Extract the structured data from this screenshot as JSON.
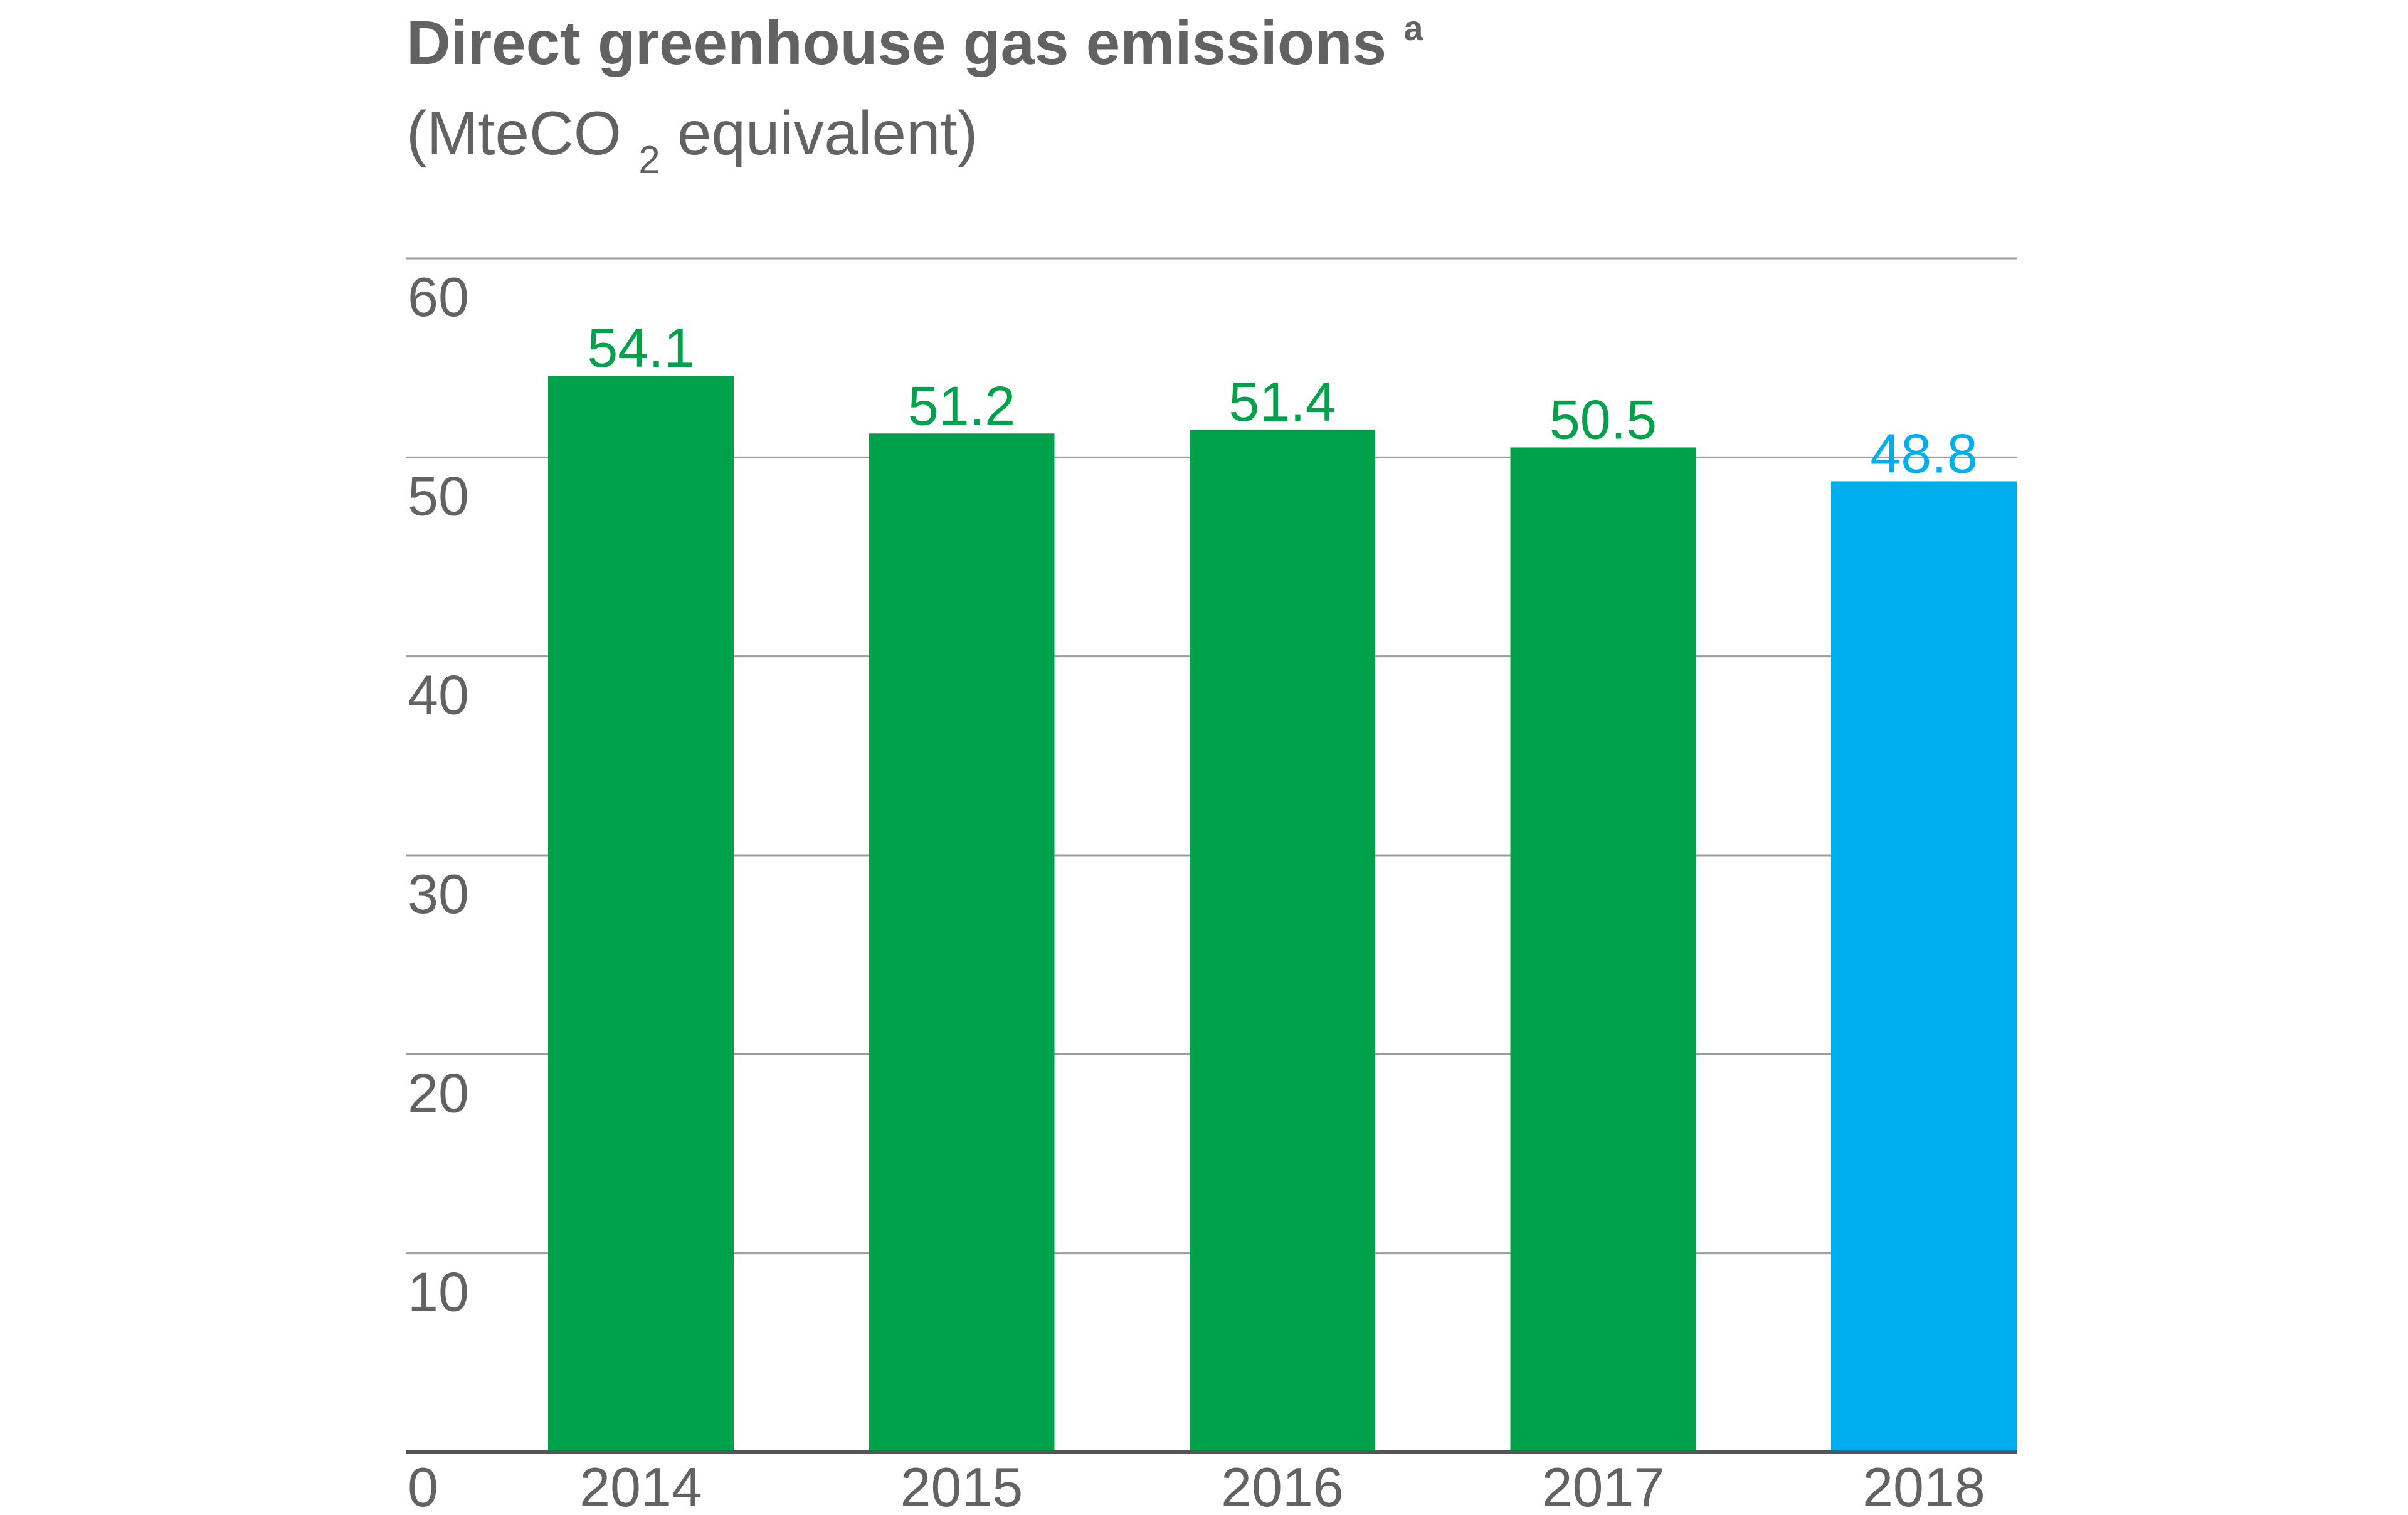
{
  "chart_data": {
    "type": "bar",
    "title": "Direct greenhouse gas emissions",
    "title_superscript": "a",
    "subtitle_prefix": "(MteCO",
    "subtitle_subscript": "2",
    "subtitle_suffix": " equivalent)",
    "categories": [
      "2014",
      "2015",
      "2016",
      "2017",
      "2018"
    ],
    "values": [
      54.1,
      51.2,
      51.4,
      50.5,
      48.8
    ],
    "value_labels": [
      "54.1",
      "51.2",
      "51.4",
      "50.5",
      "48.8"
    ],
    "bar_colors": [
      "#00A14B",
      "#00A14B",
      "#00A14B",
      "#00A14B",
      "#00AEEF"
    ],
    "ylim": [
      0,
      60
    ],
    "yticks": [
      0,
      10,
      20,
      30,
      40,
      50,
      60
    ],
    "ytick_labels": [
      "0",
      "10",
      "20",
      "30",
      "40",
      "50",
      "60"
    ],
    "xlabel": "",
    "ylabel": "",
    "grid": true,
    "legend": "none"
  },
  "colors": {
    "text": "#626262",
    "grid": "#9c9c9c",
    "axis": "#555555",
    "primary": "#00A14B",
    "highlight": "#00AEEF"
  }
}
